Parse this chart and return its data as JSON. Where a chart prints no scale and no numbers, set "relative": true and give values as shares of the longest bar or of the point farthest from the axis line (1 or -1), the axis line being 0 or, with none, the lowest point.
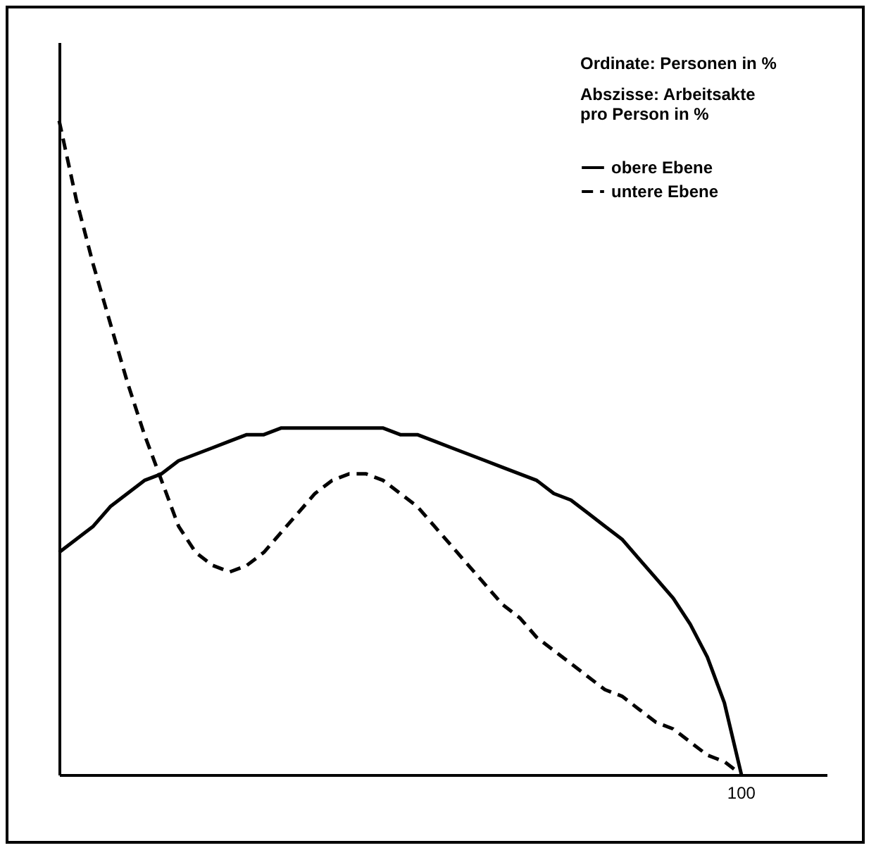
{
  "chart_data": {
    "type": "line",
    "relative": true,
    "annotations": [
      "Ordinate: Personen in %",
      "Abszisse: Arbeitsakte pro Person in %",
      {
        "text": "100",
        "y": 0
      }
    ],
    "legend": "top right",
    "marker": "none",
    "categories": [
      null,
      null,
      null,
      null,
      null,
      null,
      null,
      null,
      null,
      null,
      null,
      null,
      null,
      null,
      null,
      null,
      null,
      null,
      null,
      null,
      null,
      null,
      null,
      null,
      null,
      null,
      null,
      null,
      null,
      null,
      null,
      null,
      null,
      null,
      null,
      null,
      null,
      null,
      null,
      null,
      null,
      null,
      null,
      null,
      null,
      null
    ],
    "series": [
      {
        "name": "obere Ebene",
        "color": "#000000",
        "line_style": "solid",
        "values": [
          0.34,
          0.36,
          0.38,
          0.41,
          0.43,
          0.45,
          0.46,
          0.48,
          0.49,
          0.5,
          0.51,
          0.52,
          0.52,
          0.53,
          0.53,
          0.53,
          0.53,
          0.53,
          0.53,
          0.53,
          0.52,
          0.52,
          0.51,
          0.5,
          0.49,
          0.48,
          0.47,
          0.46,
          0.45,
          0.43,
          0.42,
          0.4,
          0.38,
          0.36,
          0.33,
          0.3,
          0.27,
          0.23,
          0.18,
          0.11,
          0,
          null,
          null,
          null,
          null,
          null
        ]
      },
      {
        "name": "untere Ebene",
        "color": "#000000",
        "line_style": "dashed",
        "values": [
          1,
          0.88,
          0.78,
          0.69,
          0.6,
          0.52,
          0.45,
          0.38,
          0.34,
          0.32,
          0.31,
          0.32,
          0.34,
          0.37,
          0.4,
          0.43,
          0.45,
          0.46,
          0.46,
          0.45,
          0.43,
          0.41,
          0.38,
          0.35,
          0.32,
          0.29,
          0.26,
          0.24,
          0.21,
          0.19,
          0.17,
          0.15,
          0.13,
          0.12,
          0.1,
          0.08,
          0.07,
          0.05,
          0.03,
          0.02,
          0,
          null,
          null,
          null,
          null,
          null
        ]
      }
    ]
  }
}
